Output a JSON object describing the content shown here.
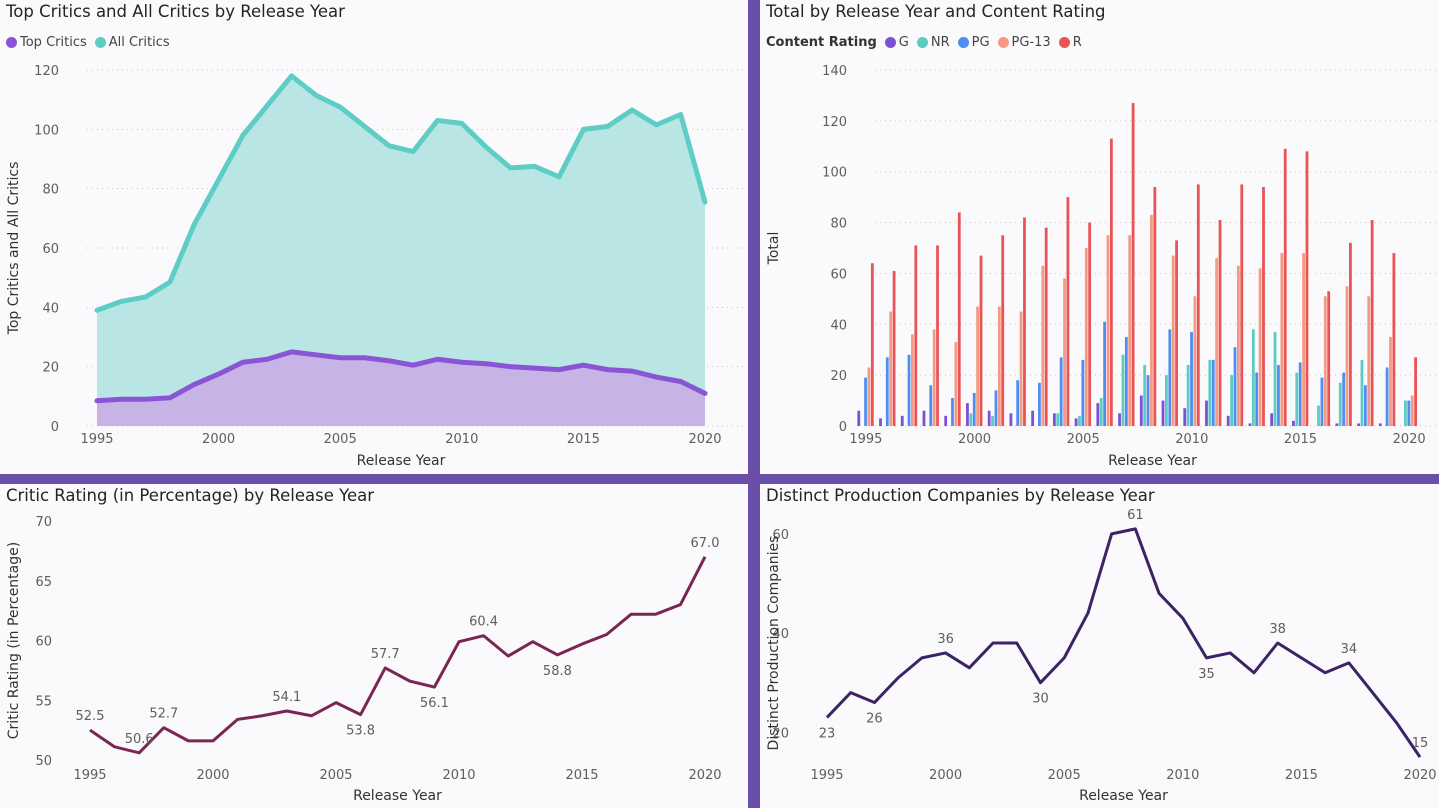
{
  "colors": {
    "top_critics": "#8a55d4",
    "all_critics": "#5ecdc5",
    "G": "#7b4fd6",
    "NR": "#5ccbc3",
    "PG": "#4f8ef0",
    "PG-13": "#f59a82",
    "R": "#ea5356",
    "critic_rating": "#7a2654",
    "companies": "#3b2366"
  },
  "chart_data": [
    {
      "id": "critics",
      "type": "area",
      "title": "Top Critics and All Critics by Release Year",
      "xlabel": "Release Year",
      "ylabel": "Top Critics and All Critics",
      "x": [
        1995,
        1996,
        1997,
        1998,
        1999,
        2000,
        2001,
        2002,
        2003,
        2004,
        2005,
        2006,
        2007,
        2008,
        2009,
        2010,
        2011,
        2012,
        2013,
        2014,
        2015,
        2016,
        2017,
        2018,
        2019,
        2020
      ],
      "xticks": [
        1995,
        2000,
        2005,
        2010,
        2015,
        2020
      ],
      "ylim": [
        0,
        120
      ],
      "yticks": [
        0,
        20,
        40,
        60,
        80,
        100,
        120
      ],
      "legend": "top-left",
      "series": [
        {
          "name": "Top Critics",
          "values": [
            8.5,
            9,
            9,
            9.5,
            14,
            17.5,
            21.5,
            22.5,
            25,
            24,
            23,
            23,
            22,
            20.5,
            22.5,
            21.5,
            21,
            20,
            19.5,
            19,
            20.5,
            19,
            18.5,
            16.5,
            15,
            11
          ]
        },
        {
          "name": "All Critics",
          "values": [
            39,
            42,
            43.5,
            48.5,
            68,
            83,
            98,
            108,
            118,
            111.5,
            107.5,
            101,
            94.5,
            92.5,
            103,
            102,
            94,
            87,
            87.5,
            84,
            100,
            101,
            106.5,
            101.5,
            105,
            75.5
          ]
        }
      ]
    },
    {
      "id": "ratings",
      "type": "bar",
      "title": "Total by Release Year and Content Rating",
      "xlabel": "Release Year",
      "ylabel": "Total",
      "legend_title": "Content Rating",
      "x": [
        1995,
        1996,
        1997,
        1998,
        1999,
        2000,
        2001,
        2002,
        2003,
        2004,
        2005,
        2006,
        2007,
        2008,
        2009,
        2010,
        2011,
        2012,
        2013,
        2014,
        2015,
        2016,
        2017,
        2018,
        2019,
        2020
      ],
      "xticks": [
        1995,
        2000,
        2005,
        2010,
        2015,
        2020
      ],
      "ylim": [
        0,
        140
      ],
      "yticks": [
        0,
        20,
        40,
        60,
        80,
        100,
        120,
        140
      ],
      "series": [
        {
          "name": "G",
          "values": [
            6,
            3,
            4,
            6,
            4,
            9,
            6,
            5,
            6,
            5,
            3,
            9,
            5,
            12,
            10,
            7,
            10,
            4,
            1,
            5,
            2,
            0,
            1,
            1,
            1,
            0
          ]
        },
        {
          "name": "NR",
          "values": [
            0,
            0,
            0,
            0,
            0,
            5,
            4,
            0,
            0,
            5,
            4,
            11,
            28,
            24,
            20,
            24,
            26,
            20,
            38,
            37,
            21,
            8,
            17,
            26,
            0,
            10
          ]
        },
        {
          "name": "PG",
          "values": [
            19,
            27,
            28,
            16,
            11,
            13,
            14,
            18,
            17,
            27,
            26,
            41,
            35,
            20,
            38,
            37,
            26,
            31,
            21,
            24,
            25,
            19,
            21,
            16,
            23,
            10
          ]
        },
        {
          "name": "PG-13",
          "values": [
            23,
            45,
            36,
            38,
            33,
            47,
            47,
            45,
            63,
            58,
            70,
            75,
            75,
            83,
            67,
            51,
            66,
            63,
            62,
            68,
            68,
            51,
            55,
            51,
            35,
            12
          ]
        },
        {
          "name": "R",
          "values": [
            64,
            61,
            71,
            71,
            84,
            67,
            75,
            82,
            78,
            90,
            80,
            113,
            127,
            94,
            73,
            95,
            81,
            95,
            94,
            109,
            108,
            53,
            72,
            81,
            68,
            27
          ]
        }
      ]
    },
    {
      "id": "critic_rating",
      "type": "line",
      "title": "Critic Rating (in Percentage) by Release Year",
      "xlabel": "Release Year",
      "ylabel": "Critic Rating (in Percentage)",
      "x": [
        1995,
        1996,
        1997,
        1998,
        1999,
        2000,
        2001,
        2002,
        2003,
        2004,
        2005,
        2006,
        2007,
        2008,
        2009,
        2010,
        2011,
        2012,
        2013,
        2014,
        2015,
        2016,
        2017,
        2018,
        2019,
        2020
      ],
      "xticks": [
        1995,
        2000,
        2005,
        2010,
        2015,
        2020
      ],
      "ylim": [
        50,
        70
      ],
      "yticks": [
        50,
        55,
        60,
        65,
        70
      ],
      "values": [
        52.5,
        51.1,
        50.6,
        52.7,
        51.6,
        51.6,
        53.4,
        53.7,
        54.1,
        53.7,
        54.8,
        53.8,
        57.7,
        56.6,
        56.1,
        59.9,
        60.4,
        58.7,
        59.9,
        58.8,
        59.7,
        60.5,
        62.2,
        62.2,
        63.0,
        67.0
      ],
      "data_labels": [
        {
          "x": 1995,
          "text": "52.5",
          "pos": "above"
        },
        {
          "x": 1997,
          "text": "50.6",
          "pos": "above"
        },
        {
          "x": 1998,
          "text": "52.7",
          "pos": "above"
        },
        {
          "x": 2003,
          "text": "54.1",
          "pos": "above"
        },
        {
          "x": 2006,
          "text": "53.8",
          "pos": "below"
        },
        {
          "x": 2007,
          "text": "57.7",
          "pos": "above"
        },
        {
          "x": 2009,
          "text": "56.1",
          "pos": "below"
        },
        {
          "x": 2011,
          "text": "60.4",
          "pos": "above"
        },
        {
          "x": 2014,
          "text": "58.8",
          "pos": "below"
        },
        {
          "x": 2020,
          "text": "67.0",
          "pos": "above"
        }
      ]
    },
    {
      "id": "companies",
      "type": "line",
      "title": "Distinct Production Companies by Release Year",
      "xlabel": "Release Year",
      "ylabel": "Distinct Production Companies",
      "x": [
        1995,
        1996,
        1997,
        1998,
        1999,
        2000,
        2001,
        2002,
        2003,
        2004,
        2005,
        2006,
        2007,
        2008,
        2009,
        2010,
        2011,
        2012,
        2013,
        2014,
        2015,
        2016,
        2017,
        2018,
        2019,
        2020
      ],
      "xticks": [
        1995,
        2000,
        2005,
        2010,
        2015,
        2020
      ],
      "ylim": [
        12,
        64
      ],
      "yticks": [
        20,
        40,
        60
      ],
      "values": [
        23,
        28,
        26,
        31,
        35,
        36,
        33,
        38,
        38,
        30,
        35,
        44,
        60,
        61,
        48,
        43,
        35,
        36,
        32,
        38,
        35,
        32,
        34,
        28,
        22,
        15
      ],
      "data_labels": [
        {
          "x": 1995,
          "text": "23",
          "pos": "below"
        },
        {
          "x": 1997,
          "text": "26",
          "pos": "below"
        },
        {
          "x": 2000,
          "text": "36",
          "pos": "above"
        },
        {
          "x": 2004,
          "text": "30",
          "pos": "below"
        },
        {
          "x": 2008,
          "text": "61",
          "pos": "above"
        },
        {
          "x": 2011,
          "text": "35",
          "pos": "below"
        },
        {
          "x": 2014,
          "text": "38",
          "pos": "above"
        },
        {
          "x": 2017,
          "text": "34",
          "pos": "above"
        },
        {
          "x": 2020,
          "text": "15",
          "pos": "above"
        }
      ]
    }
  ]
}
